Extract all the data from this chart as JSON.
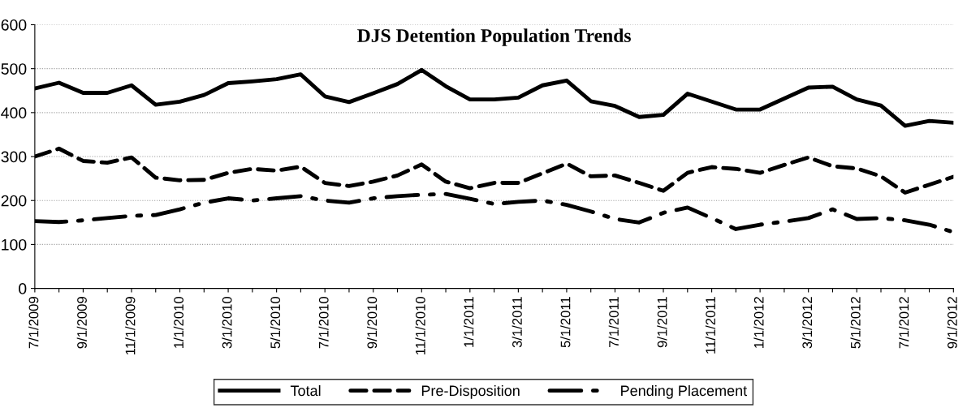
{
  "chart_data": {
    "type": "line",
    "title": "DJS Detention Population Trends",
    "categories": [
      "7/1/2009",
      null,
      "9/1/2009",
      null,
      "11/1/2009",
      null,
      "1/1/2010",
      null,
      "3/1/2010",
      null,
      "5/1/2010",
      null,
      "7/1/2010",
      null,
      "9/1/2010",
      null,
      "11/1/2010",
      null,
      "1/1/2011",
      null,
      "3/1/2011",
      null,
      "5/1/2011",
      null,
      "7/1/2011",
      null,
      "9/1/2011",
      null,
      "11/1/2011",
      null,
      "1/1/2012",
      null,
      "3/1/2012",
      null,
      "5/1/2012",
      null,
      "7/1/2012",
      null,
      "9/1/2012"
    ],
    "series": [
      {
        "name": "Total",
        "color": "#000000",
        "line_style": "solid",
        "values": [
          455,
          468,
          445,
          445,
          462,
          418,
          425,
          440,
          467,
          471,
          476,
          487,
          437,
          424,
          444,
          465,
          497,
          460,
          430,
          430,
          434,
          462,
          473,
          426,
          415,
          390,
          395,
          443,
          425,
          407,
          407,
          432,
          457,
          459,
          430,
          416,
          370,
          381,
          377
        ]
      },
      {
        "name": "Pre-Disposition",
        "color": "#000000",
        "line_style": "dashed",
        "values": [
          300,
          318,
          290,
          286,
          298,
          252,
          246,
          247,
          263,
          272,
          268,
          277,
          240,
          233,
          243,
          257,
          282,
          243,
          228,
          240,
          240,
          262,
          284,
          255,
          257,
          240,
          222,
          263,
          276,
          272,
          263,
          281,
          298,
          278,
          273,
          255,
          218,
          236,
          254
        ]
      },
      {
        "name": "Pending Placement",
        "color": "#000000",
        "line_style": "dashdot",
        "values": [
          153,
          151,
          155,
          160,
          165,
          167,
          180,
          195,
          205,
          200,
          205,
          210,
          200,
          195,
          205,
          210,
          213,
          215,
          204,
          192,
          197,
          200,
          190,
          175,
          158,
          150,
          172,
          184,
          160,
          135,
          145,
          152,
          160,
          180,
          158,
          160,
          155,
          145,
          128
        ]
      }
    ],
    "ylim": [
      0,
      600
    ],
    "yticks": [
      0,
      100,
      200,
      300,
      400,
      500,
      600
    ],
    "grid": "y",
    "legend": "bottom"
  }
}
